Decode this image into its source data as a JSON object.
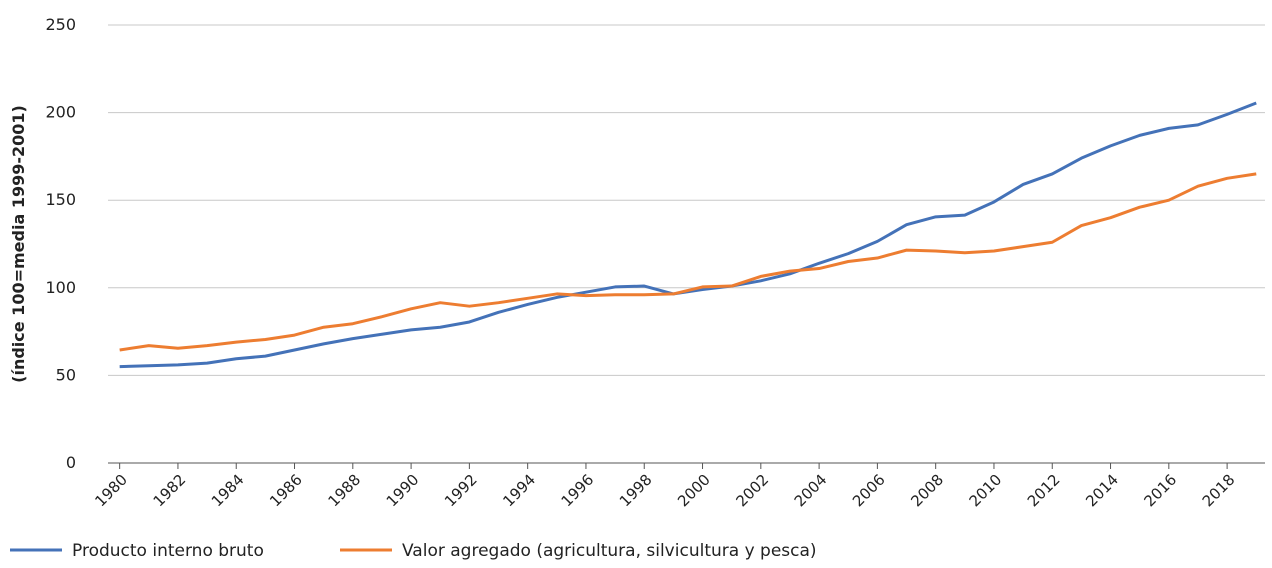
{
  "chart_data": {
    "type": "line",
    "y_label": "(índice 100=media 1999-2001)",
    "x": [
      1980,
      1981,
      1982,
      1983,
      1984,
      1985,
      1986,
      1987,
      1988,
      1989,
      1990,
      1991,
      1992,
      1993,
      1994,
      1995,
      1996,
      1997,
      1998,
      1999,
      2000,
      2001,
      2002,
      2003,
      2004,
      2005,
      2006,
      2007,
      2008,
      2009,
      2010,
      2011,
      2012,
      2013,
      2014,
      2015,
      2016,
      2017,
      2018,
      2019
    ],
    "series": [
      {
        "name": "Producto interno bruto",
        "color": "#4472b8",
        "values": [
          55,
          55.5,
          56,
          57,
          59.5,
          61,
          64.5,
          68,
          71,
          73.5,
          76,
          77.5,
          80.5,
          86,
          90.5,
          94.5,
          97.5,
          100.5,
          101,
          96.5,
          99,
          101,
          104,
          108,
          114,
          119.5,
          126.5,
          136,
          140.5,
          141.5,
          149,
          159,
          165,
          174,
          181,
          187,
          191,
          193,
          199,
          205.5
        ]
      },
      {
        "name": "Valor agregado (agricultura, silvicultura y pesca)",
        "color": "#ed7d31",
        "values": [
          64.5,
          67,
          65.5,
          67,
          69,
          70.5,
          73,
          77.5,
          79.5,
          83.5,
          88,
          91.5,
          89.5,
          91.5,
          94,
          96.5,
          95.5,
          96,
          96,
          96.5,
          100.5,
          101,
          106.5,
          109.5,
          111,
          115,
          117,
          121.5,
          121,
          120,
          121,
          123.5,
          126,
          135.5,
          140,
          146,
          150,
          158,
          162.5,
          165
        ]
      }
    ],
    "xlim": [
      1979.6,
      2019.3
    ],
    "xticks": [
      1980,
      1982,
      1984,
      1986,
      1988,
      1990,
      1992,
      1994,
      1996,
      1998,
      2000,
      2002,
      2004,
      2006,
      2008,
      2010,
      2012,
      2014,
      2016,
      2018
    ],
    "ylim": [
      0,
      250
    ],
    "yticks": [
      0,
      50,
      100,
      150,
      200,
      250
    ],
    "grid": true
  }
}
